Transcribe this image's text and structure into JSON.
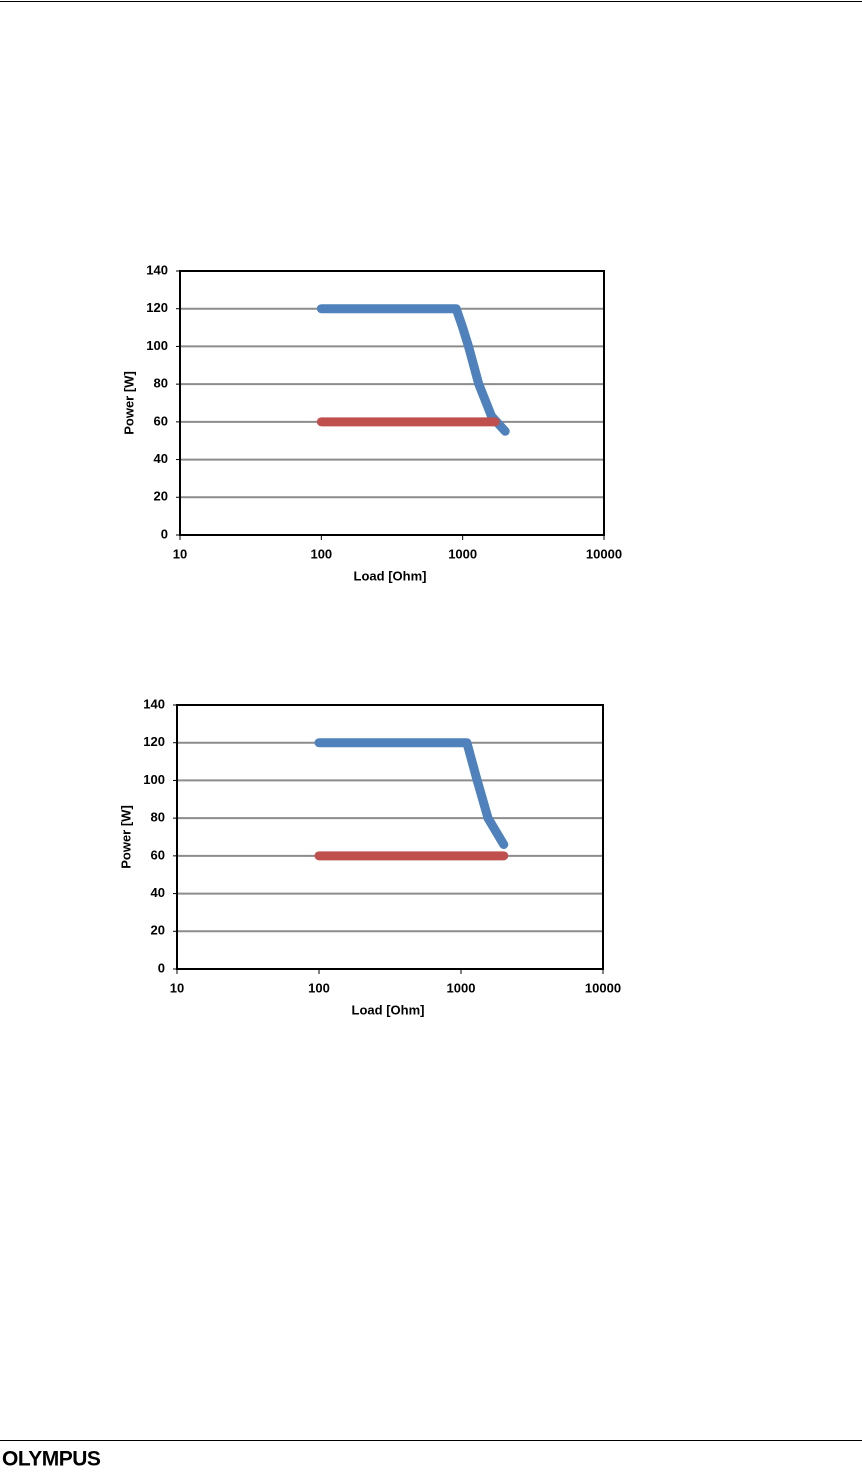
{
  "chart_data": [
    {
      "type": "line",
      "xlabel": "Load [Ohm]",
      "ylabel": "Power [W]",
      "xscale": "log",
      "xlim": [
        10,
        10000
      ],
      "xticks": [
        10,
        100,
        1000,
        10000
      ],
      "ylim": [
        0,
        140
      ],
      "yticks": [
        0,
        20,
        40,
        60,
        80,
        100,
        120,
        140
      ],
      "grid": true,
      "series": [
        {
          "color": "#4f81bd",
          "x": [
            100,
            900,
            1000,
            1100,
            1300,
            1600,
            2000
          ],
          "values": [
            120,
            120,
            110,
            100,
            80,
            63,
            55
          ]
        },
        {
          "color": "#c0504d",
          "x": [
            100,
            1700
          ],
          "values": [
            60,
            60
          ]
        }
      ]
    },
    {
      "type": "line",
      "xlabel": "Load [Ohm]",
      "ylabel": "Power [W]",
      "xscale": "log",
      "xlim": [
        10,
        10000
      ],
      "xticks": [
        10,
        100,
        1000,
        10000
      ],
      "ylim": [
        0,
        140
      ],
      "yticks": [
        0,
        20,
        40,
        60,
        80,
        100,
        120,
        140
      ],
      "grid": true,
      "series": [
        {
          "color": "#4f81bd",
          "x": [
            100,
            1100,
            1300,
            1550,
            2000
          ],
          "values": [
            120,
            120,
            100,
            80,
            66
          ]
        },
        {
          "color": "#c0504d",
          "x": [
            100,
            2000
          ],
          "values": [
            60,
            60
          ]
        }
      ]
    }
  ],
  "footer": {
    "logo": "OLYMPUS"
  }
}
